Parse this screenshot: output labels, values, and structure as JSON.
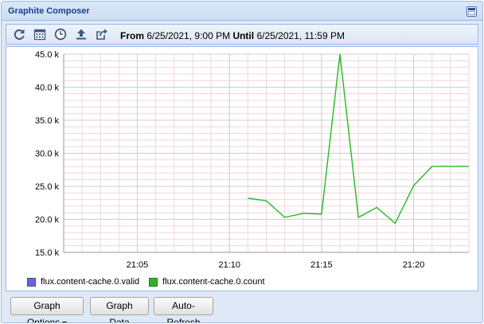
{
  "window": {
    "title": "Graphite Composer"
  },
  "toolbar": {
    "icons": [
      "refresh-icon",
      "calendar-icon",
      "clock-icon",
      "upload-icon",
      "share-icon"
    ],
    "range": {
      "from_label": "From",
      "from_value": "6/25/2021, 9:00 PM",
      "until_label": "Until",
      "until_value": "6/25/2021, 11:59 PM"
    }
  },
  "chart_data": {
    "type": "line",
    "x_start": "21:01",
    "x_end": "21:23",
    "x_min_minute": 1,
    "x_max_minute": 23,
    "ylim": [
      15000,
      45000
    ],
    "yticks": [
      15000,
      20000,
      25000,
      30000,
      35000,
      40000,
      45000
    ],
    "ytick_labels": [
      "15.0 k",
      "20.0 k",
      "25.0 k",
      "30.0 k",
      "35.0 k",
      "40.0 k",
      "45.0 k"
    ],
    "xticks_minute": [
      5,
      10,
      15,
      20
    ],
    "xtick_labels": [
      "21:05",
      "21:10",
      "21:15",
      "21:20"
    ],
    "grid": true,
    "legend_position": "bottom",
    "series": [
      {
        "name": "flux.content-cache.0.valid",
        "color": "#6464e6",
        "x": [],
        "values": []
      },
      {
        "name": "flux.content-cache.0.count",
        "color": "#22bb22",
        "x": [
          11,
          12,
          13,
          14,
          15,
          16,
          17,
          18,
          19,
          20,
          21,
          22,
          23
        ],
        "values": [
          23200,
          22800,
          20300,
          20900,
          20800,
          45000,
          20300,
          21800,
          19400,
          25100,
          28000,
          28000,
          28000
        ]
      }
    ]
  },
  "buttons": {
    "graph_options": "Graph Options",
    "graph_data": "Graph Data",
    "auto_refresh": "Auto-Refresh"
  }
}
